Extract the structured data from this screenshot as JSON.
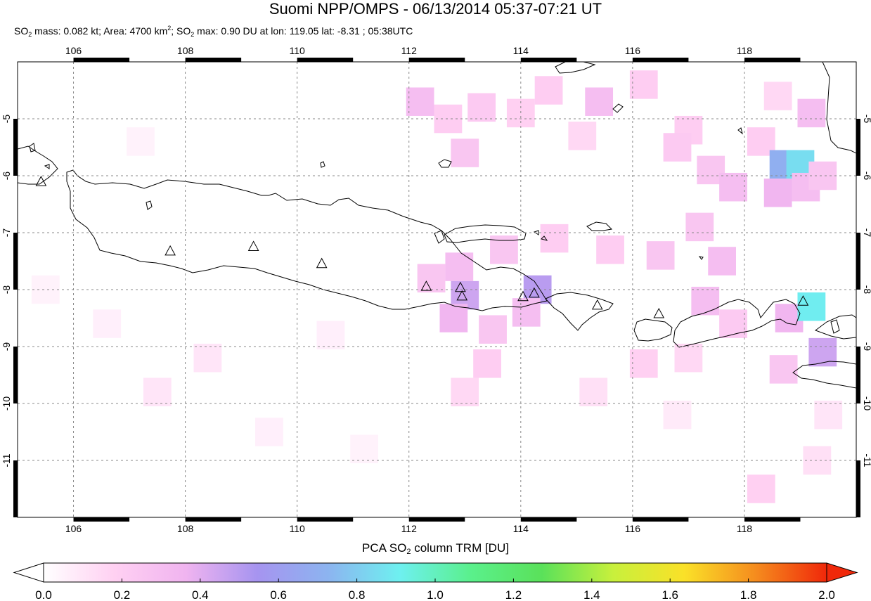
{
  "title": "Suomi NPP/OMPS - 06/13/2014 05:37-07:21 UT",
  "subtitle": {
    "mass_prefix": "SO",
    "mass_sub": "2",
    "mass_text": " mass: 0.082 kt; Area: 4700 km",
    "area_sup": "2",
    "max_prefix": "; SO",
    "max_sub": "2",
    "max_text": " max: 0.90 DU at lon: 119.05 lat: -8.31 ; 05:38UTC"
  },
  "map": {
    "lon_range": [
      105,
      120
    ],
    "lat_range": [
      -12,
      -4
    ],
    "lon_ticks": [
      "106",
      "108",
      "110",
      "112",
      "114",
      "116",
      "118"
    ],
    "lat_ticks": [
      "-5",
      "-6",
      "-7",
      "-8",
      "-9",
      "-10",
      "-11"
    ],
    "grid": true,
    "volcanoes": [
      {
        "lon": 105.42,
        "lat": -6.1
      },
      {
        "lon": 107.73,
        "lat": -7.32
      },
      {
        "lon": 109.22,
        "lat": -7.24
      },
      {
        "lon": 110.44,
        "lat": -7.54
      },
      {
        "lon": 112.31,
        "lat": -7.94
      },
      {
        "lon": 112.92,
        "lat": -7.96
      },
      {
        "lon": 112.95,
        "lat": -8.11
      },
      {
        "lon": 114.04,
        "lat": -8.12
      },
      {
        "lon": 114.24,
        "lat": -8.06
      },
      {
        "lon": 115.37,
        "lat": -8.27
      },
      {
        "lon": 116.47,
        "lat": -8.42
      },
      {
        "lon": 119.05,
        "lat": -8.2
      }
    ],
    "so2_cells": [
      {
        "lon": 112.2,
        "lat": -4.7,
        "v": 0.3
      },
      {
        "lon": 112.7,
        "lat": -5.0,
        "v": 0.2
      },
      {
        "lon": 113.3,
        "lat": -4.8,
        "v": 0.22
      },
      {
        "lon": 114.0,
        "lat": -4.9,
        "v": 0.18
      },
      {
        "lon": 114.5,
        "lat": -4.5,
        "v": 0.2
      },
      {
        "lon": 115.4,
        "lat": -4.7,
        "v": 0.3
      },
      {
        "lon": 116.2,
        "lat": -4.4,
        "v": 0.2
      },
      {
        "lon": 117.0,
        "lat": -5.2,
        "v": 0.2
      },
      {
        "lon": 115.1,
        "lat": -5.3,
        "v": 0.15
      },
      {
        "lon": 113.0,
        "lat": -5.6,
        "v": 0.25
      },
      {
        "lon": 116.8,
        "lat": -5.5,
        "v": 0.22
      },
      {
        "lon": 117.4,
        "lat": -5.9,
        "v": 0.25
      },
      {
        "lon": 118.3,
        "lat": -5.4,
        "v": 0.2
      },
      {
        "lon": 118.6,
        "lat": -4.6,
        "v": 0.15
      },
      {
        "lon": 119.2,
        "lat": -4.9,
        "v": 0.3
      },
      {
        "lon": 118.7,
        "lat": -5.8,
        "v": 0.7
      },
      {
        "lon": 119.0,
        "lat": -5.8,
        "v": 0.85
      },
      {
        "lon": 119.1,
        "lat": -6.2,
        "v": 0.3
      },
      {
        "lon": 119.4,
        "lat": -6.0,
        "v": 0.25
      },
      {
        "lon": 118.6,
        "lat": -6.3,
        "v": 0.35
      },
      {
        "lon": 117.8,
        "lat": -6.2,
        "v": 0.3
      },
      {
        "lon": 117.2,
        "lat": -6.9,
        "v": 0.25
      },
      {
        "lon": 117.6,
        "lat": -7.5,
        "v": 0.3
      },
      {
        "lon": 116.5,
        "lat": -7.4,
        "v": 0.25
      },
      {
        "lon": 115.6,
        "lat": -7.3,
        "v": 0.2
      },
      {
        "lon": 114.6,
        "lat": -7.1,
        "v": 0.2
      },
      {
        "lon": 113.7,
        "lat": -7.3,
        "v": 0.25
      },
      {
        "lon": 112.9,
        "lat": -7.6,
        "v": 0.3
      },
      {
        "lon": 112.4,
        "lat": -7.8,
        "v": 0.25
      },
      {
        "lon": 113.0,
        "lat": -8.1,
        "v": 0.45
      },
      {
        "lon": 112.8,
        "lat": -8.5,
        "v": 0.35
      },
      {
        "lon": 113.5,
        "lat": -8.7,
        "v": 0.25
      },
      {
        "lon": 114.3,
        "lat": -8.0,
        "v": 0.5
      },
      {
        "lon": 114.1,
        "lat": -8.4,
        "v": 0.3
      },
      {
        "lon": 113.4,
        "lat": -9.3,
        "v": 0.2
      },
      {
        "lon": 117.3,
        "lat": -8.2,
        "v": 0.3
      },
      {
        "lon": 117.8,
        "lat": -8.6,
        "v": 0.22
      },
      {
        "lon": 118.8,
        "lat": -8.5,
        "v": 0.35
      },
      {
        "lon": 119.2,
        "lat": -8.3,
        "v": 0.9
      },
      {
        "lon": 119.4,
        "lat": -9.1,
        "v": 0.45
      },
      {
        "lon": 118.7,
        "lat": -9.4,
        "v": 0.25
      },
      {
        "lon": 117.0,
        "lat": -9.2,
        "v": 0.15
      },
      {
        "lon": 116.2,
        "lat": -9.3,
        "v": 0.18
      },
      {
        "lon": 115.3,
        "lat": -9.8,
        "v": 0.12
      },
      {
        "lon": 113.0,
        "lat": -9.8,
        "v": 0.15
      },
      {
        "lon": 118.3,
        "lat": -11.5,
        "v": 0.18
      },
      {
        "lon": 119.3,
        "lat": -11.0,
        "v": 0.12
      },
      {
        "lon": 119.5,
        "lat": -10.2,
        "v": 0.1
      },
      {
        "lon": 116.8,
        "lat": -10.2,
        "v": 0.08
      },
      {
        "lon": 107.5,
        "lat": -9.8,
        "v": 0.1
      },
      {
        "lon": 108.4,
        "lat": -9.2,
        "v": 0.1
      },
      {
        "lon": 109.5,
        "lat": -10.5,
        "v": 0.06
      },
      {
        "lon": 106.6,
        "lat": -8.6,
        "v": 0.06
      },
      {
        "lon": 105.5,
        "lat": -8.0,
        "v": 0.05
      },
      {
        "lon": 107.2,
        "lat": -5.4,
        "v": 0.05
      },
      {
        "lon": 110.6,
        "lat": -8.8,
        "v": 0.06
      },
      {
        "lon": 111.2,
        "lat": -10.8,
        "v": 0.05
      }
    ]
  },
  "colorbar": {
    "title_prefix": "PCA SO",
    "title_sub": "2",
    "title_suffix": " column TRM [DU]",
    "min": 0.0,
    "max": 2.0,
    "tick_labels": [
      "0.0",
      "0.2",
      "0.4",
      "0.6",
      "0.8",
      "1.0",
      "1.2",
      "1.4",
      "1.6",
      "1.8",
      "2.0"
    ],
    "colors": [
      "#ffffff",
      "#ffd0f2",
      "#f0b4f0",
      "#a694f0",
      "#8cb4f0",
      "#6ef0f0",
      "#5af08c",
      "#5ae15a",
      "#c8f03c",
      "#fae128",
      "#f58c1e",
      "#f0280a"
    ]
  }
}
